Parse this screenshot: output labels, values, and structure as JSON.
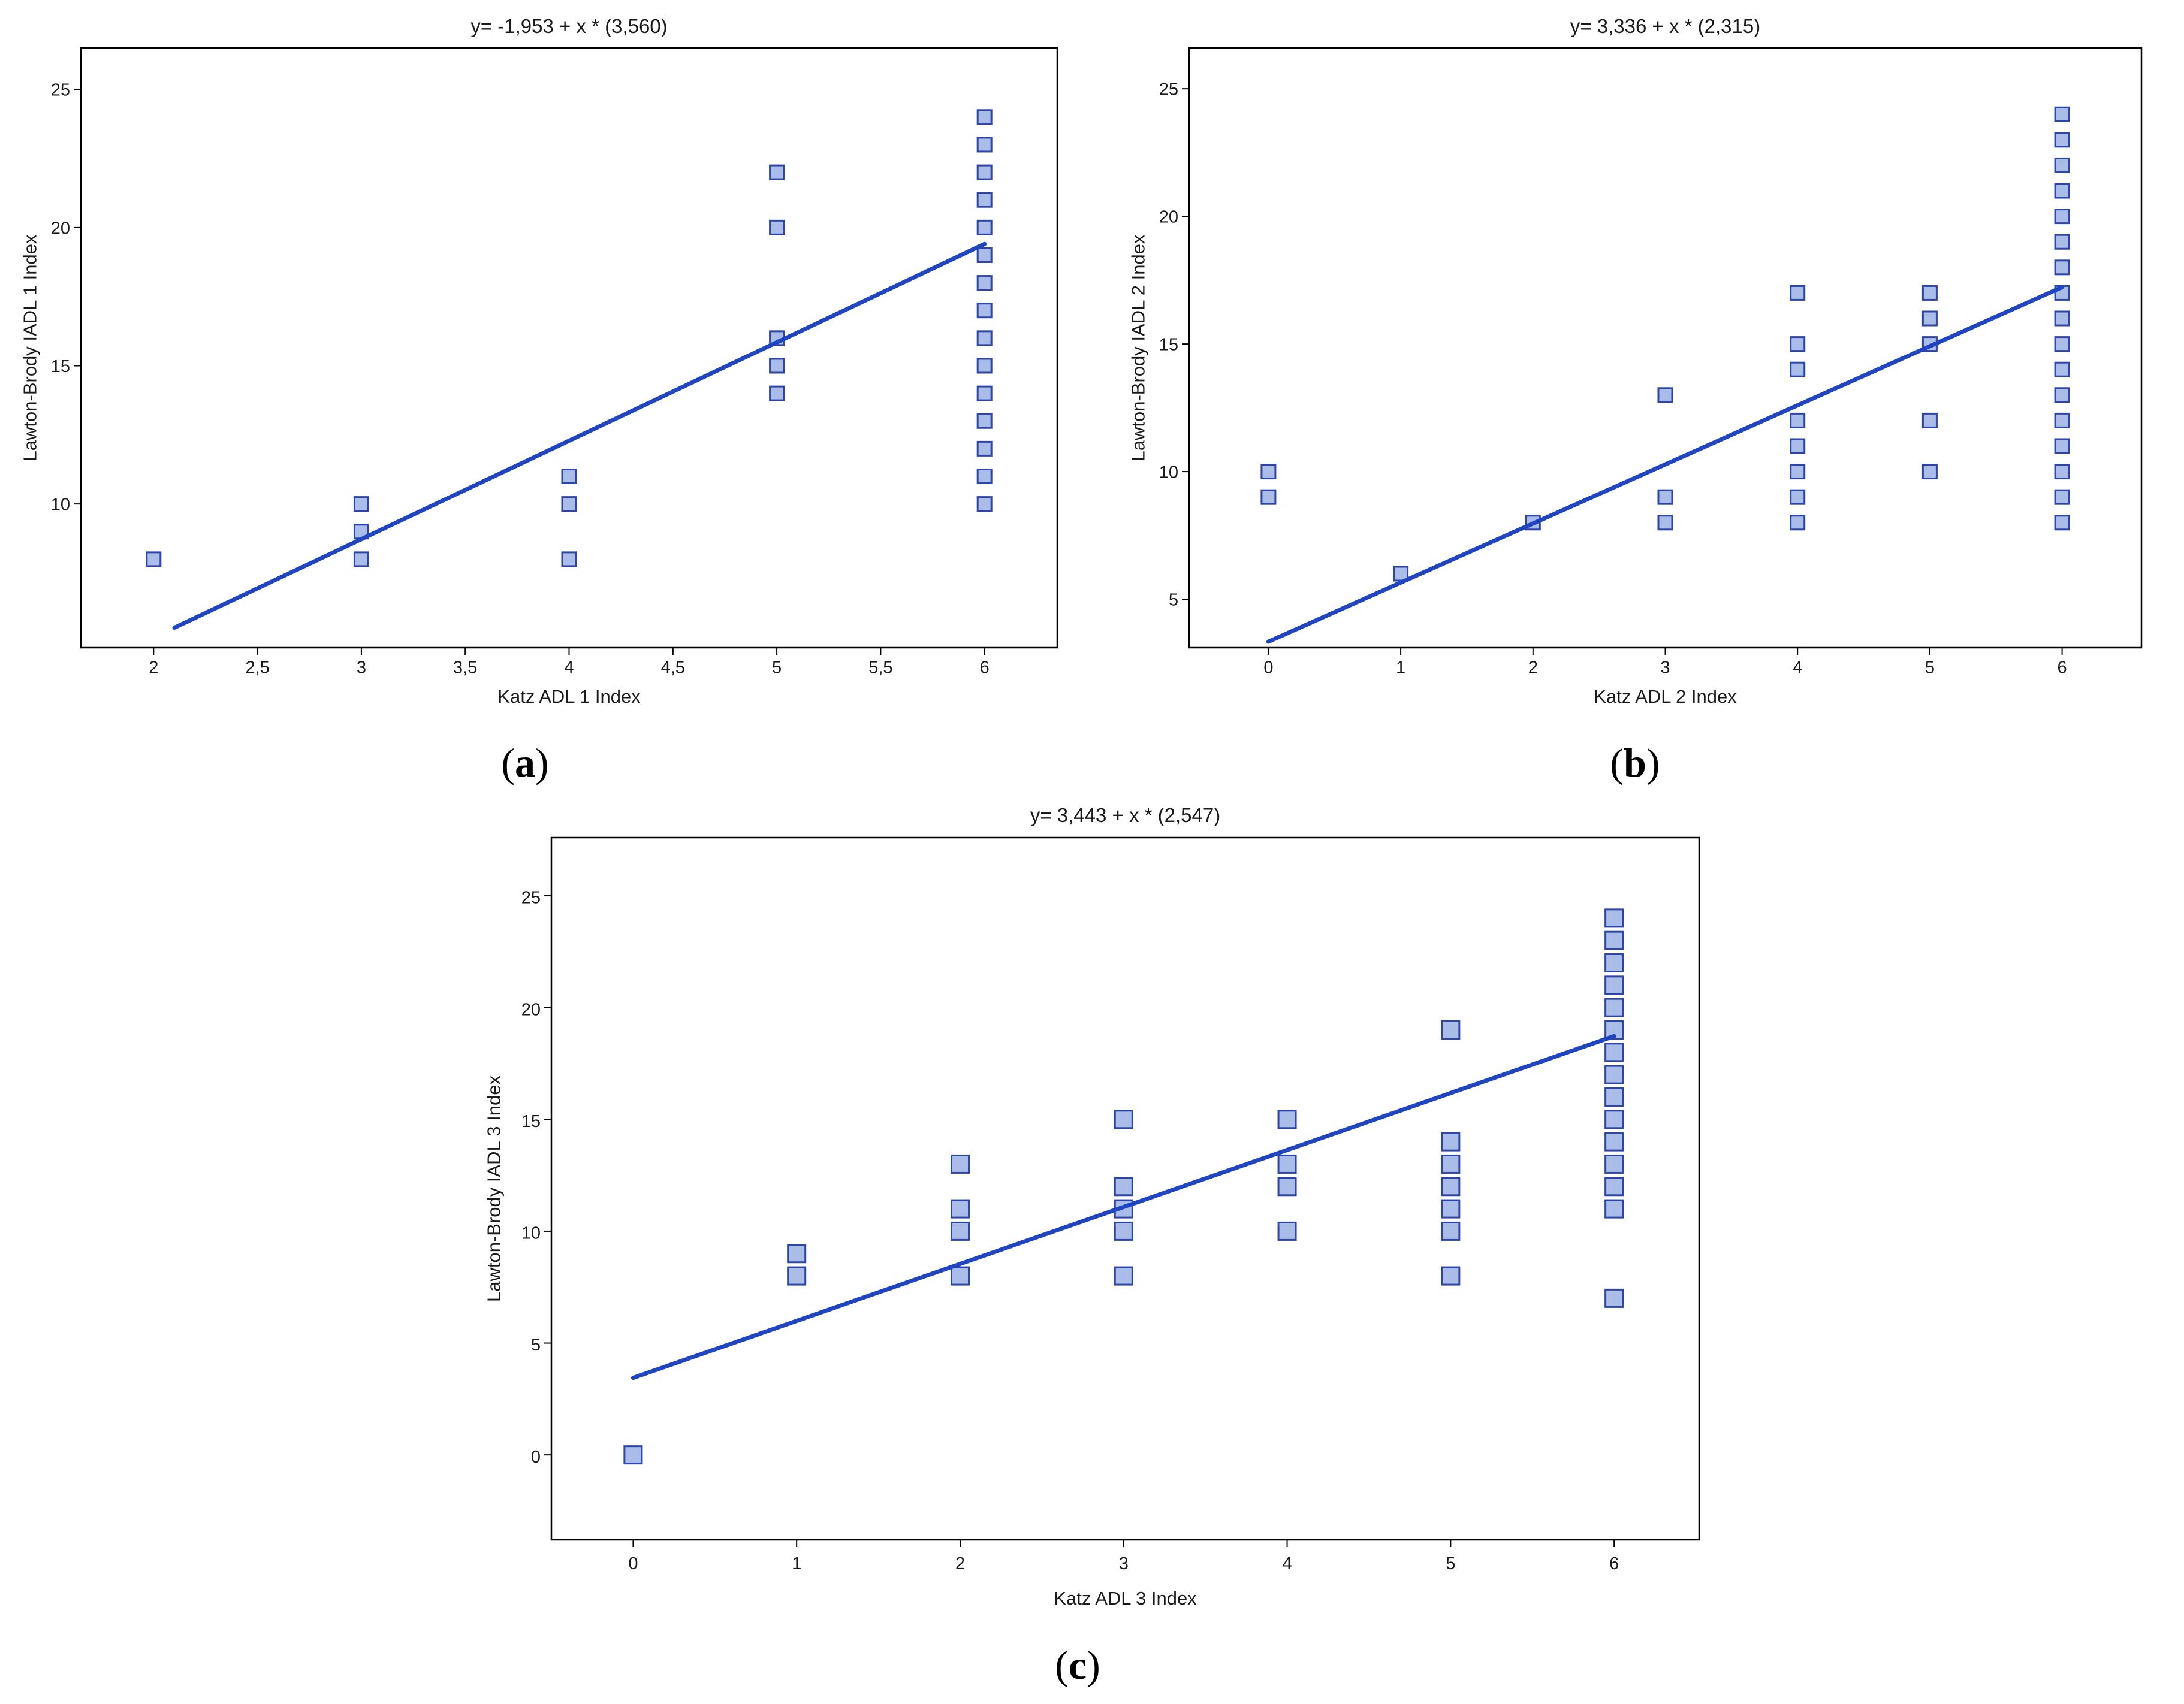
{
  "colors": {
    "marker_fill": "#a9bde8",
    "marker_stroke": "#2e45a8",
    "line": "#1f45c3",
    "axis": "#000000"
  },
  "chart_data": [
    {
      "type": "scatter",
      "panel": "a",
      "title": "y= -1,953 + x * (3,560)",
      "xlabel": "Katz ADL 1 Index",
      "ylabel": "Lawton-Brody IADL 1 Index",
      "xlim": [
        1.65,
        6.35
      ],
      "ylim": [
        4.8,
        26.5
      ],
      "xticks": [
        2,
        2.5,
        3,
        3.5,
        4,
        4.5,
        5,
        5.5,
        6
      ],
      "xtick_labels": [
        "2",
        "2,5",
        "3",
        "3,5",
        "4",
        "4,5",
        "5",
        "5,5",
        "6"
      ],
      "yticks": [
        10,
        15,
        20,
        25
      ],
      "ytick_labels": [
        "10",
        "15",
        "20",
        "25"
      ],
      "points": [
        [
          2,
          8
        ],
        [
          3,
          8
        ],
        [
          3,
          9
        ],
        [
          3,
          10
        ],
        [
          4,
          8
        ],
        [
          4,
          10
        ],
        [
          4,
          11
        ],
        [
          5,
          14
        ],
        [
          5,
          15
        ],
        [
          5,
          16
        ],
        [
          5,
          20
        ],
        [
          5,
          22
        ],
        [
          6,
          10
        ],
        [
          6,
          11
        ],
        [
          6,
          12
        ],
        [
          6,
          13
        ],
        [
          6,
          14
        ],
        [
          6,
          15
        ],
        [
          6,
          16
        ],
        [
          6,
          17
        ],
        [
          6,
          18
        ],
        [
          6,
          19
        ],
        [
          6,
          20
        ],
        [
          6,
          21
        ],
        [
          6,
          22
        ],
        [
          6,
          23
        ],
        [
          6,
          24
        ]
      ],
      "fit": {
        "intercept": -1.953,
        "slope": 3.56,
        "x_range": [
          2.1,
          6.0
        ]
      },
      "label": "(a)"
    },
    {
      "type": "scatter",
      "panel": "b",
      "title": "y= 3,336 + x * (2,315)",
      "xlabel": "Katz ADL 2 Index",
      "ylabel": "Lawton-Brody IADL 2 Index",
      "xlim": [
        -0.6,
        6.6
      ],
      "ylim": [
        3.1,
        26.6
      ],
      "xticks": [
        0,
        1,
        2,
        3,
        4,
        5,
        6
      ],
      "xtick_labels": [
        "0",
        "1",
        "2",
        "3",
        "4",
        "5",
        "6"
      ],
      "yticks": [
        5,
        10,
        15,
        20,
        25
      ],
      "ytick_labels": [
        "5",
        "10",
        "15",
        "20",
        "25"
      ],
      "points": [
        [
          0,
          9
        ],
        [
          0,
          10
        ],
        [
          1,
          6
        ],
        [
          2,
          8
        ],
        [
          3,
          8
        ],
        [
          3,
          9
        ],
        [
          3,
          13
        ],
        [
          4,
          8
        ],
        [
          4,
          9
        ],
        [
          4,
          10
        ],
        [
          4,
          11
        ],
        [
          4,
          12
        ],
        [
          4,
          14
        ],
        [
          4,
          15
        ],
        [
          4,
          17
        ],
        [
          5,
          10
        ],
        [
          5,
          12
        ],
        [
          5,
          15
        ],
        [
          5,
          16
        ],
        [
          5,
          17
        ],
        [
          6,
          8
        ],
        [
          6,
          9
        ],
        [
          6,
          10
        ],
        [
          6,
          11
        ],
        [
          6,
          12
        ],
        [
          6,
          13
        ],
        [
          6,
          14
        ],
        [
          6,
          15
        ],
        [
          6,
          16
        ],
        [
          6,
          17
        ],
        [
          6,
          18
        ],
        [
          6,
          19
        ],
        [
          6,
          20
        ],
        [
          6,
          21
        ],
        [
          6,
          22
        ],
        [
          6,
          23
        ],
        [
          6,
          24
        ]
      ],
      "fit": {
        "intercept": 3.336,
        "slope": 2.315,
        "x_range": [
          0.0,
          6.0
        ]
      },
      "label": "(b)"
    },
    {
      "type": "scatter",
      "panel": "c",
      "title": "y= 3,443 + x * (2,547)",
      "xlabel": "Katz ADL 3 Index",
      "ylabel": "Lawton-Brody IADL 3 Index",
      "xlim": [
        -0.5,
        6.52
      ],
      "ylim": [
        -3.8,
        27.6
      ],
      "xticks": [
        0,
        1,
        2,
        3,
        4,
        5,
        6
      ],
      "xtick_labels": [
        "0",
        "1",
        "2",
        "3",
        "4",
        "5",
        "6"
      ],
      "yticks": [
        0,
        5,
        10,
        15,
        20,
        25
      ],
      "ytick_labels": [
        "0",
        "5",
        "10",
        "15",
        "20",
        "25"
      ],
      "points": [
        [
          0,
          0
        ],
        [
          1,
          8
        ],
        [
          1,
          9
        ],
        [
          2,
          8
        ],
        [
          2,
          10
        ],
        [
          2,
          11
        ],
        [
          2,
          13
        ],
        [
          3,
          8
        ],
        [
          3,
          10
        ],
        [
          3,
          11
        ],
        [
          3,
          12
        ],
        [
          3,
          15
        ],
        [
          4,
          10
        ],
        [
          4,
          12
        ],
        [
          4,
          13
        ],
        [
          4,
          15
        ],
        [
          5,
          8
        ],
        [
          5,
          10
        ],
        [
          5,
          11
        ],
        [
          5,
          12
        ],
        [
          5,
          13
        ],
        [
          5,
          14
        ],
        [
          5,
          19
        ],
        [
          6,
          7
        ],
        [
          6,
          11
        ],
        [
          6,
          12
        ],
        [
          6,
          13
        ],
        [
          6,
          14
        ],
        [
          6,
          15
        ],
        [
          6,
          16
        ],
        [
          6,
          17
        ],
        [
          6,
          18
        ],
        [
          6,
          19
        ],
        [
          6,
          20
        ],
        [
          6,
          21
        ],
        [
          6,
          22
        ],
        [
          6,
          23
        ],
        [
          6,
          24
        ]
      ],
      "fit": {
        "intercept": 3.443,
        "slope": 2.547,
        "x_range": [
          0.0,
          6.0
        ]
      },
      "label": "(c)"
    }
  ]
}
